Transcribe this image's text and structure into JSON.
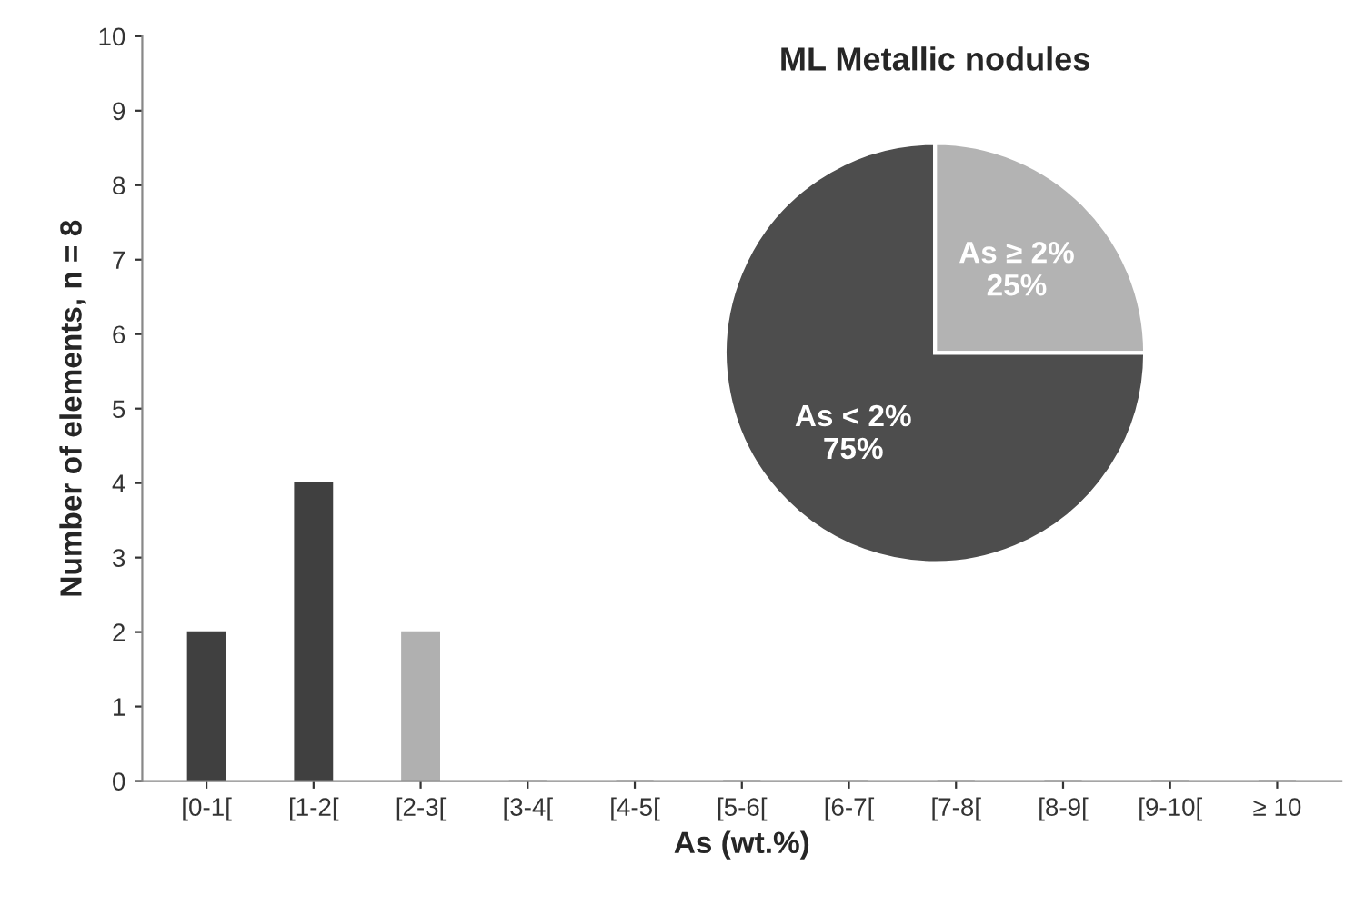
{
  "chart_data": [
    {
      "type": "bar",
      "categories": [
        "[0-1[",
        "[1-2[",
        "[2-3[",
        "[3-4[",
        "[4-5[",
        "[5-6[",
        "[6-7[",
        "[7-8[",
        "[8-9[",
        "[9-10[",
        "≥ 10"
      ],
      "values": [
        2,
        4,
        2,
        0,
        0,
        0,
        0,
        0,
        0,
        0,
        0
      ],
      "colors": [
        "#404040",
        "#404040",
        "#b0b0b0",
        "#404040",
        "#404040",
        "#404040",
        "#404040",
        "#404040",
        "#404040",
        "#404040",
        "#404040"
      ],
      "xlabel": "As (wt.%)",
      "ylabel": "Number of elements, n = 8",
      "ylim": [
        0,
        10
      ],
      "yticks": [
        0,
        1,
        2,
        3,
        4,
        5,
        6,
        7,
        8,
        9,
        10
      ],
      "grid": false,
      "legend": false
    },
    {
      "type": "pie",
      "title": "ML Metallic nodules",
      "categories": [
        "As ≥ 2%",
        "As < 2%"
      ],
      "values": [
        25,
        75
      ],
      "colors": [
        "#b3b3b3",
        "#4d4d4d"
      ],
      "value_labels": [
        "25%",
        "75%"
      ],
      "legend": false
    }
  ]
}
